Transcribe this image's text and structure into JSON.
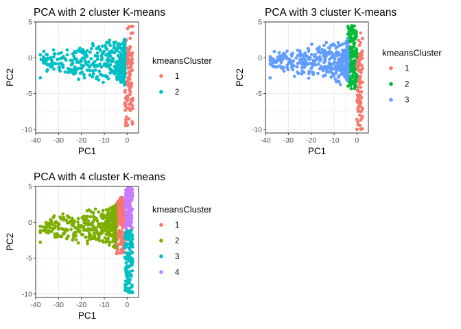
{
  "figure": {
    "background": "#ffffff",
    "panel_background": "#ffffff",
    "grid_color": "#ebebeb",
    "border_color": "#333333"
  },
  "chart_data": [
    {
      "type": "scatter",
      "title": "PCA with 2 cluster K-means",
      "xlabel": "PC1",
      "ylabel": "PC2",
      "xlim": [
        -40,
        5
      ],
      "ylim": [
        -10.5,
        5
      ],
      "xticks": [
        -40,
        -30,
        -20,
        -10,
        0
      ],
      "yticks": [
        5,
        0,
        -5,
        -10
      ],
      "grid": true,
      "legend": {
        "title": "kmeansCluster",
        "placement": "right"
      },
      "series": [
        {
          "name": "1",
          "color": "#F8766D",
          "x_range": [
            -1,
            2.5
          ],
          "y_range": [
            -10,
            4.5
          ]
        },
        {
          "name": "2",
          "color": "#00BFC4",
          "x_range": [
            -38,
            -1
          ],
          "y_range": [
            -4.5,
            3.3
          ]
        }
      ]
    },
    {
      "type": "scatter",
      "title": "PCA with 3 cluster K-means",
      "xlabel": "PC1",
      "ylabel": "PC2",
      "xlim": [
        -40,
        5
      ],
      "ylim": [
        -10.5,
        5
      ],
      "xticks": [
        -40,
        -30,
        -20,
        -10,
        0
      ],
      "yticks": [
        5,
        0,
        -5,
        -10
      ],
      "grid": true,
      "legend": {
        "title": "kmeansCluster",
        "placement": "right"
      },
      "series": [
        {
          "name": "1",
          "color": "#F8766D",
          "x_range": [
            0,
            2.5
          ],
          "y_range": [
            -10,
            3.8
          ]
        },
        {
          "name": "2",
          "color": "#00BA38",
          "x_range": [
            -4,
            0
          ],
          "y_range": [
            -4.5,
            4.5
          ]
        },
        {
          "name": "3",
          "color": "#619CFF",
          "x_range": [
            -38,
            -4
          ],
          "y_range": [
            -4,
            2.8
          ]
        }
      ]
    },
    {
      "type": "scatter",
      "title": "PCA with 4 cluster K-means",
      "xlabel": "PC1",
      "ylabel": "PC2",
      "xlim": [
        -40,
        5
      ],
      "ylim": [
        -10.5,
        5
      ],
      "xticks": [
        -40,
        -30,
        -20,
        -10,
        0
      ],
      "yticks": [
        5,
        0,
        -5,
        -10
      ],
      "grid": true,
      "legend": {
        "title": "kmeansCluster",
        "placement": "right"
      },
      "series": [
        {
          "name": "1",
          "color": "#F8766D",
          "x_range": [
            -5,
            -1
          ],
          "y_range": [
            -4.5,
            3.5
          ]
        },
        {
          "name": "2",
          "color": "#7CAE00",
          "x_range": [
            -38,
            -5
          ],
          "y_range": [
            -4,
            2.8
          ]
        },
        {
          "name": "3",
          "color": "#00BFC4",
          "x_range": [
            -1,
            2.5
          ],
          "y_range": [
            -10,
            -1
          ]
        },
        {
          "name": "4",
          "color": "#C77CFF",
          "x_range": [
            -1,
            2.5
          ],
          "y_range": [
            -1,
            4.8
          ]
        }
      ]
    }
  ]
}
